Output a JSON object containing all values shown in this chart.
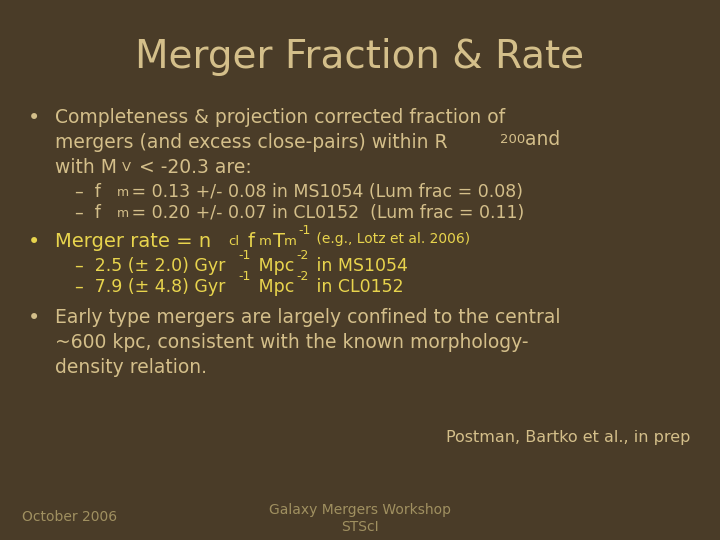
{
  "background_color": "#4a3c28",
  "title": "Merger Fraction & Rate",
  "title_color": "#d4bf8a",
  "title_fontsize": 28,
  "bullet_color": "#d4bf8a",
  "yellow_color": "#e8d44d",
  "footer_color": "#a09060",
  "sub_color": "#d4bf8a"
}
